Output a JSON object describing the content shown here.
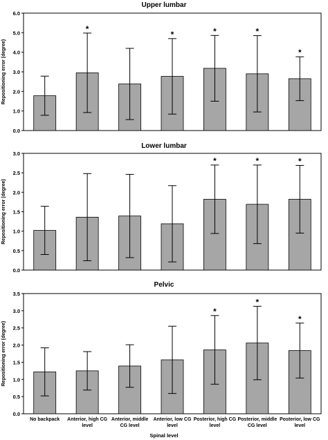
{
  "chart_data": [
    {
      "type": "bar",
      "title": "Upper lumbar",
      "ylabel": "Repositioning error (degree)",
      "ylim": [
        0,
        6
      ],
      "yticks": [
        "0.0",
        "1.0",
        "2.0",
        "3.0",
        "4.0",
        "5.0",
        "6.0"
      ],
      "categories": [
        "No backpack",
        "Anterior, high CG level",
        "Anterior, middle CG level",
        "Anterior, low CG level",
        "Posterior, high CG level",
        "Posterior, middle CG level",
        "Posterior, low CG level"
      ],
      "values": [
        1.78,
        2.95,
        2.38,
        2.77,
        3.18,
        2.9,
        2.65
      ],
      "errors": [
        1.0,
        2.03,
        1.82,
        1.93,
        1.68,
        1.95,
        1.12
      ],
      "significant": [
        false,
        true,
        false,
        true,
        true,
        true,
        true
      ],
      "marker": "*"
    },
    {
      "type": "bar",
      "title": "Lower lumbar",
      "ylabel": "Repositioning error (degree)",
      "ylim": [
        0,
        3
      ],
      "yticks": [
        "0.0",
        "0.5",
        "1.0",
        "1.5",
        "2.0",
        "2.5",
        "3.0"
      ],
      "categories": [
        "No backpack",
        "Anterior, high CG level",
        "Anterior, middle CG level",
        "Anterior, low CG level",
        "Posterior, high CG level",
        "Posterior, middle CG level",
        "Posterior, low CG level"
      ],
      "values": [
        1.02,
        1.36,
        1.39,
        1.19,
        1.82,
        1.69,
        1.82
      ],
      "errors": [
        0.62,
        1.12,
        1.07,
        0.98,
        0.88,
        1.01,
        0.87
      ],
      "significant": [
        false,
        false,
        false,
        false,
        true,
        true,
        true
      ],
      "marker": "*"
    },
    {
      "type": "bar",
      "title": "Pelvic",
      "ylabel": "Repositioning error (degree)",
      "xlabel": "Spinal level",
      "ylim": [
        0,
        3.5
      ],
      "yticks": [
        "0.0",
        "0.5",
        "1.0",
        "1.5",
        "2.0",
        "2.5",
        "3.0",
        "3.5"
      ],
      "categories": [
        "No backpack",
        "Anterior, high CG level",
        "Anterior, middle CG level",
        "Anterior, low CG level",
        "Posterior, high CG level",
        "Posterior, middle CG level",
        "Posterior, low CG level"
      ],
      "values": [
        1.22,
        1.25,
        1.39,
        1.57,
        1.86,
        2.06,
        1.84
      ],
      "errors": [
        0.7,
        0.56,
        0.62,
        0.98,
        1.0,
        1.07,
        0.8
      ],
      "significant": [
        false,
        false,
        false,
        false,
        true,
        true,
        true
      ],
      "marker": "*"
    }
  ],
  "colors": {
    "bar_fill": "#a6a6a6",
    "bar_stroke": "#000000",
    "axis": "#000000",
    "background": "#ffffff"
  }
}
